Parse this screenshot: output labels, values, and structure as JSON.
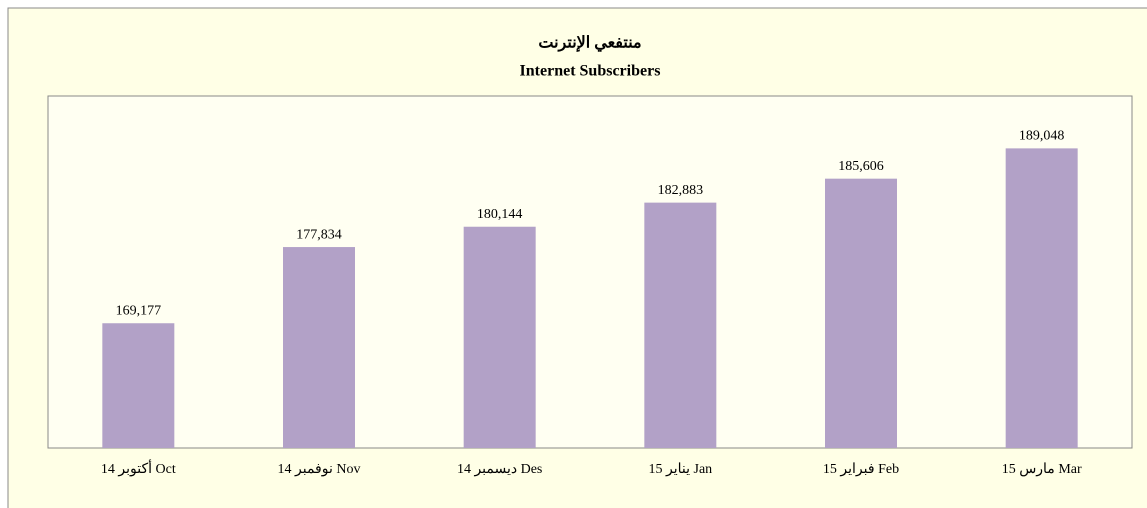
{
  "chart_data": {
    "type": "bar",
    "title": "منتفعي الإنترنت",
    "subtitle": "Internet Subscribers",
    "categories": [
      "أكتوبر 14 Oct",
      "نوفمبر 14 Nov",
      "ديسمبر 14 Des",
      "يناير 15 Jan",
      "فبراير 15 Feb",
      "مارس 15 Mar"
    ],
    "values": [
      169177,
      177834,
      180144,
      182883,
      185606,
      189048
    ],
    "value_labels": [
      "169,177",
      "177,834",
      "180,144",
      "182,883",
      "185,606",
      "189,048"
    ],
    "color": "#b2a1c7",
    "ylim": [
      155000,
      195000
    ]
  }
}
